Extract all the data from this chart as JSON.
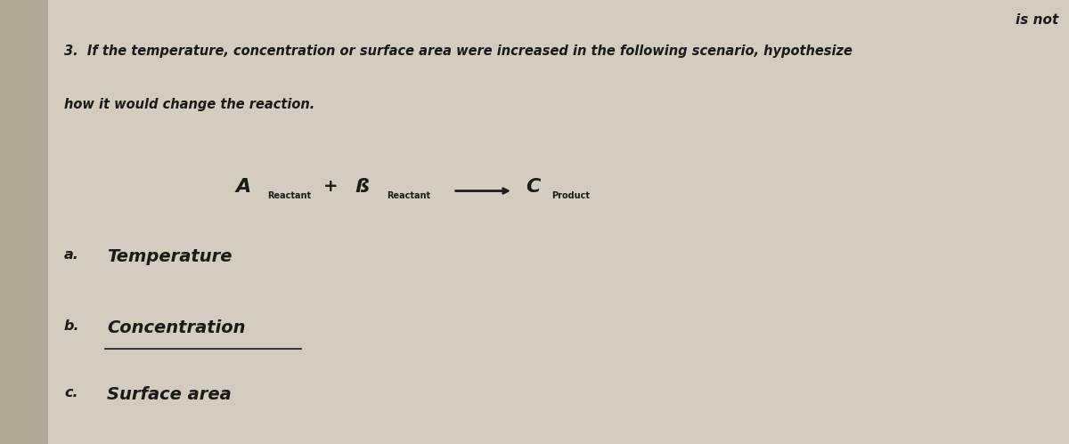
{
  "bg_color": "#d4cdbf",
  "bg_left_color": "#b0a898",
  "title_line1": "3.  If the temperature, concentration or surface area were increased in the following scenario, hypothesize",
  "title_line2": "how it would change the reaction.",
  "reaction_A": "A",
  "reaction_A_sub": "Reactant",
  "reaction_plus": "+",
  "reaction_B": "ß",
  "reaction_B_sub": "Reactant",
  "reaction_C": "C",
  "reaction_C_sub": "Product",
  "item_a_label": "a.",
  "item_a_text": "Temperature",
  "item_b_label": "b.",
  "item_b_text": "Concentration",
  "item_c_label": "c.",
  "item_c_text": "Surface area",
  "corner_text": "is not",
  "fig_width": 12.0,
  "fig_height": 4.99
}
